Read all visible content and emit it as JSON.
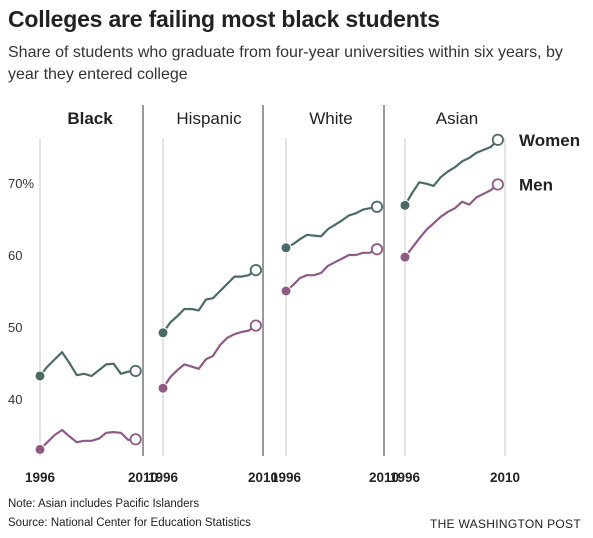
{
  "title": "Colleges are failing most black students",
  "subtitle": "Share of students who graduate from four-year universities within six years, by year they entered college",
  "note": "Note: Asian includes Pacific Islanders",
  "source": "Source: National Center for Education Statistics",
  "credit": "THE WASHINGTON POST",
  "colors": {
    "women": "#4c6b68",
    "men": "#8e5a86",
    "grid": "#c8c8c8",
    "axis": "#333333"
  },
  "chart_data": {
    "type": "line",
    "y_ticks": [
      {
        "value": 40,
        "label": "40"
      },
      {
        "value": 50,
        "label": "50"
      },
      {
        "value": 60,
        "label": "60"
      },
      {
        "value": 70,
        "label": "70%"
      }
    ],
    "ylim": [
      31,
      77
    ],
    "xlim": [
      1996,
      2010
    ],
    "x_ticks": [
      1996,
      2010
    ],
    "x_tick_labels": [
      "1996",
      "2010"
    ],
    "legend": [
      "Women",
      "Men"
    ],
    "grid": true,
    "panels": [
      {
        "title": "Black",
        "title_bold": true,
        "series": [
          {
            "name": "Women",
            "x": [
              1996,
              1997,
              1998,
              1999,
              2000,
              2001,
              2002,
              2003,
              2004,
              2005,
              2006,
              2007,
              2008,
              2009
            ],
            "y": [
              43.2,
              44.5,
              45.5,
              46.5,
              45.0,
              43.3,
              43.5,
              43.2,
              44.0,
              44.8,
              44.9,
              43.5,
              43.8,
              43.9
            ]
          },
          {
            "name": "Men",
            "x": [
              1996,
              1997,
              1998,
              1999,
              2000,
              2001,
              2002,
              2003,
              2004,
              2005,
              2006,
              2007,
              2008,
              2009
            ],
            "y": [
              33.0,
              34.0,
              35.0,
              35.7,
              34.8,
              34.0,
              34.2,
              34.2,
              34.5,
              35.3,
              35.4,
              35.3,
              34.3,
              34.4
            ]
          }
        ]
      },
      {
        "title": "Hispanic",
        "title_bold": false,
        "series": [
          {
            "name": "Women",
            "x": [
              1996,
              1997,
              1998,
              1999,
              2000,
              2001,
              2002,
              2003,
              2004,
              2005,
              2006,
              2007,
              2008,
              2009
            ],
            "y": [
              49.2,
              50.6,
              51.5,
              52.5,
              52.5,
              52.3,
              53.8,
              54.0,
              55.0,
              56.0,
              57.0,
              57.0,
              57.2,
              57.9
            ]
          },
          {
            "name": "Men",
            "x": [
              1996,
              1997,
              1998,
              1999,
              2000,
              2001,
              2002,
              2003,
              2004,
              2005,
              2006,
              2007,
              2008,
              2009
            ],
            "y": [
              41.5,
              43.0,
              44.0,
              44.8,
              44.5,
              44.2,
              45.5,
              46.0,
              47.5,
              48.5,
              49.0,
              49.3,
              49.5,
              50.2
            ]
          }
        ]
      },
      {
        "title": "White",
        "title_bold": false,
        "series": [
          {
            "name": "Women",
            "x": [
              1996,
              1997,
              1998,
              1999,
              2000,
              2001,
              2002,
              2003,
              2004,
              2005,
              2006,
              2007,
              2008,
              2009
            ],
            "y": [
              61.0,
              61.5,
              62.2,
              62.8,
              62.7,
              62.6,
              63.6,
              64.2,
              64.8,
              65.5,
              65.8,
              66.3,
              66.5,
              66.7
            ]
          },
          {
            "name": "Men",
            "x": [
              1996,
              1997,
              1998,
              1999,
              2000,
              2001,
              2002,
              2003,
              2004,
              2005,
              2006,
              2007,
              2008,
              2009
            ],
            "y": [
              55.0,
              55.8,
              56.8,
              57.2,
              57.2,
              57.5,
              58.5,
              59.0,
              59.5,
              60.0,
              60.0,
              60.3,
              60.3,
              60.8
            ]
          }
        ]
      },
      {
        "title": "Asian",
        "title_bold": false,
        "series": [
          {
            "name": "Women",
            "x": [
              1996,
              1997,
              1998,
              1999,
              2000,
              2001,
              2002,
              2003,
              2004,
              2005,
              2006,
              2007,
              2008,
              2009
            ],
            "y": [
              66.9,
              68.6,
              70.1,
              69.9,
              69.6,
              70.8,
              71.6,
              72.2,
              73.0,
              73.5,
              74.2,
              74.6,
              75.0,
              76.0
            ]
          },
          {
            "name": "Men",
            "x": [
              1996,
              1997,
              1998,
              1999,
              2000,
              2001,
              2002,
              2003,
              2004,
              2005,
              2006,
              2007,
              2008,
              2009
            ],
            "y": [
              59.7,
              61.0,
              62.3,
              63.5,
              64.4,
              65.3,
              66.0,
              66.5,
              67.4,
              67.0,
              68.0,
              68.5,
              69.0,
              69.8
            ]
          }
        ]
      }
    ]
  }
}
